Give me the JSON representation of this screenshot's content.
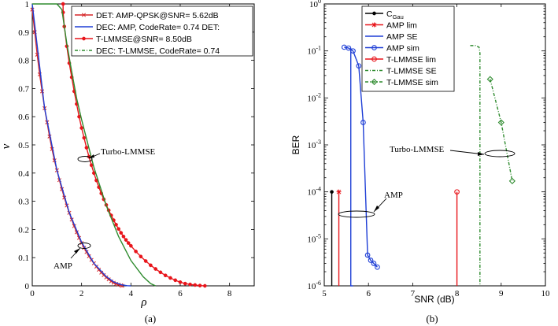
{
  "chart_data": [
    {
      "panel": "(a)",
      "type": "line",
      "xlabel": "ρ",
      "ylabel": "ν",
      "xlim": [
        0,
        9
      ],
      "ylim": [
        0,
        1
      ],
      "xticks": [
        "0",
        "2",
        "4",
        "6",
        "8"
      ],
      "yticks": [
        "0",
        "0.1",
        "0.2",
        "0.3",
        "0.4",
        "0.5",
        "0.6",
        "0.7",
        "0.8",
        "0.9",
        "1"
      ],
      "legend": [
        "DET: AMP-QPSK@SNR= 5.62dB",
        "DEC: AMP, CodeRate= 0.74 DET:",
        "T-LMMSE@SNR= 8.50dB",
        "DEC: T-LMMSE, CodeRate= 0.74"
      ],
      "annotations": [
        "Turbo-LMMSE",
        "AMP"
      ],
      "series": [
        {
          "name": "DET: AMP-QPSK@SNR= 5.62dB",
          "color": "#d62728",
          "marker": "x",
          "x": [
            0,
            0.1,
            0.2,
            0.3,
            0.4,
            0.5,
            0.6,
            0.7,
            0.8,
            0.9,
            1.0,
            1.1,
            1.2,
            1.3,
            1.4,
            1.5,
            1.6,
            1.7,
            1.8,
            1.9,
            2.0,
            2.1,
            2.2,
            2.3,
            2.4,
            2.5,
            2.6,
            2.7,
            2.8,
            2.9,
            3.0,
            3.1,
            3.2,
            3.3,
            3.4,
            3.5,
            3.6,
            3.65
          ],
          "y": [
            0.98,
            0.9,
            0.82,
            0.75,
            0.69,
            0.63,
            0.58,
            0.53,
            0.485,
            0.445,
            0.41,
            0.375,
            0.343,
            0.313,
            0.285,
            0.259,
            0.235,
            0.212,
            0.19,
            0.17,
            0.152,
            0.135,
            0.12,
            0.105,
            0.092,
            0.08,
            0.068,
            0.057,
            0.047,
            0.038,
            0.03,
            0.023,
            0.016,
            0.011,
            0.007,
            0.004,
            0.002,
            0
          ]
        },
        {
          "name": "DEC: AMP, CodeRate= 0.74",
          "color": "#1f3fd6",
          "marker": "none",
          "x": [
            0,
            0.5,
            1.0,
            1.5,
            2.0,
            2.5,
            3.0,
            3.3,
            3.6,
            3.85,
            4.0
          ],
          "y": [
            1.0,
            0.63,
            0.41,
            0.26,
            0.155,
            0.08,
            0.033,
            0.014,
            0.004,
            0.0005,
            0
          ]
        },
        {
          "name": "T-LMMSE@SNR= 8.50dB",
          "color": "#e8151b",
          "marker": "dot",
          "x": [
            1.25,
            1.25,
            1.3,
            1.4,
            1.5,
            1.6,
            1.7,
            1.8,
            1.9,
            2.0,
            2.1,
            2.2,
            2.3,
            2.4,
            2.5,
            2.6,
            2.7,
            2.8,
            2.9,
            3.0,
            3.1,
            3.2,
            3.3,
            3.4,
            3.5,
            3.6,
            3.7,
            3.8,
            3.9,
            4.0,
            4.2,
            4.4,
            4.6,
            4.8,
            5.0,
            5.2,
            5.4,
            5.6,
            5.8,
            6.0,
            6.2,
            6.4,
            6.6,
            6.8,
            7.0
          ],
          "y": [
            1.0,
            0.97,
            0.92,
            0.85,
            0.79,
            0.74,
            0.69,
            0.645,
            0.6,
            0.56,
            0.525,
            0.49,
            0.458,
            0.428,
            0.4,
            0.374,
            0.35,
            0.328,
            0.307,
            0.287,
            0.268,
            0.25,
            0.233,
            0.217,
            0.202,
            0.188,
            0.175,
            0.163,
            0.152,
            0.142,
            0.122,
            0.104,
            0.088,
            0.073,
            0.06,
            0.048,
            0.037,
            0.028,
            0.02,
            0.013,
            0.008,
            0.005,
            0.003,
            0.001,
            0
          ]
        },
        {
          "name": "DEC: T-LMMSE, CodeRate= 0.74",
          "color": "#2e8b2e",
          "marker": "none",
          "x": [
            0,
            1.0,
            1.2,
            1.4,
            1.6,
            1.8,
            2.0,
            2.5,
            3.0,
            3.5,
            4.0,
            4.5,
            4.8,
            5.0
          ],
          "y": [
            1.0,
            1.0,
            0.98,
            0.86,
            0.76,
            0.665,
            0.59,
            0.42,
            0.285,
            0.175,
            0.09,
            0.032,
            0.008,
            0
          ]
        }
      ]
    },
    {
      "panel": "(b)",
      "type": "line",
      "xlabel": "SNR (dB)",
      "ylabel": "BER",
      "yscale": "log",
      "xlim": [
        5,
        10
      ],
      "ylim": [
        1e-06,
        1
      ],
      "xticks": [
        "5",
        "6",
        "7",
        "8",
        "9",
        "10"
      ],
      "yticks": [
        "10-6",
        "10-5",
        "10-4",
        "10-3",
        "10-2",
        "10-1",
        "100"
      ],
      "legend": [
        "C_Gau",
        "AMP lim",
        "AMP SE",
        "AMP sim",
        "T-LMMSE  lim",
        "T-LMMSE  SE",
        "T-LMMSE sim"
      ],
      "annotations": [
        "Turbo-LMMSE",
        "AMP"
      ],
      "series": [
        {
          "name": "C_Gau",
          "color": "#000000",
          "marker": "dot",
          "x": [
            5.17,
            5.17
          ],
          "y": [
            0.0001,
            1e-06
          ]
        },
        {
          "name": "AMP lim",
          "color": "#e8151b",
          "marker": "star",
          "x": [
            5.33,
            5.33
          ],
          "y": [
            0.0001,
            1e-06
          ]
        },
        {
          "name": "AMP SE",
          "color": "#1f3fd6",
          "marker": "none",
          "x": [
            5.6,
            5.6,
            5.65
          ],
          "y": [
            0.115,
            1e-06,
            1e-06
          ]
        },
        {
          "name": "AMP sim",
          "color": "#1f3fd6",
          "marker": "circle",
          "x": [
            5.45,
            5.55,
            5.65,
            5.78,
            5.88,
            5.98,
            6.05,
            6.12,
            6.2
          ],
          "y": [
            0.12,
            0.115,
            0.1,
            0.048,
            0.003,
            4.5e-06,
            3.5e-06,
            3e-06,
            2.5e-06
          ]
        },
        {
          "name": "T-LMMSE  lim",
          "color": "#e8151b",
          "marker": "circle",
          "x": [
            8.0,
            8.0
          ],
          "y": [
            0.0001,
            1e-06
          ]
        },
        {
          "name": "T-LMMSE  SE",
          "color": "#2e8b2e",
          "marker": "none",
          "x": [
            8.3,
            8.42,
            8.5,
            8.52,
            8.52
          ],
          "y": [
            0.13,
            0.13,
            0.12,
            0.09,
            1e-06
          ]
        },
        {
          "name": "T-LMMSE sim",
          "color": "#2e8b2e",
          "marker": "diamond",
          "x": [
            8.75,
            9.0,
            9.25
          ],
          "y": [
            0.025,
            0.003,
            0.00017
          ]
        }
      ]
    }
  ],
  "captions": {
    "a": "(a)",
    "b": "(b)"
  }
}
